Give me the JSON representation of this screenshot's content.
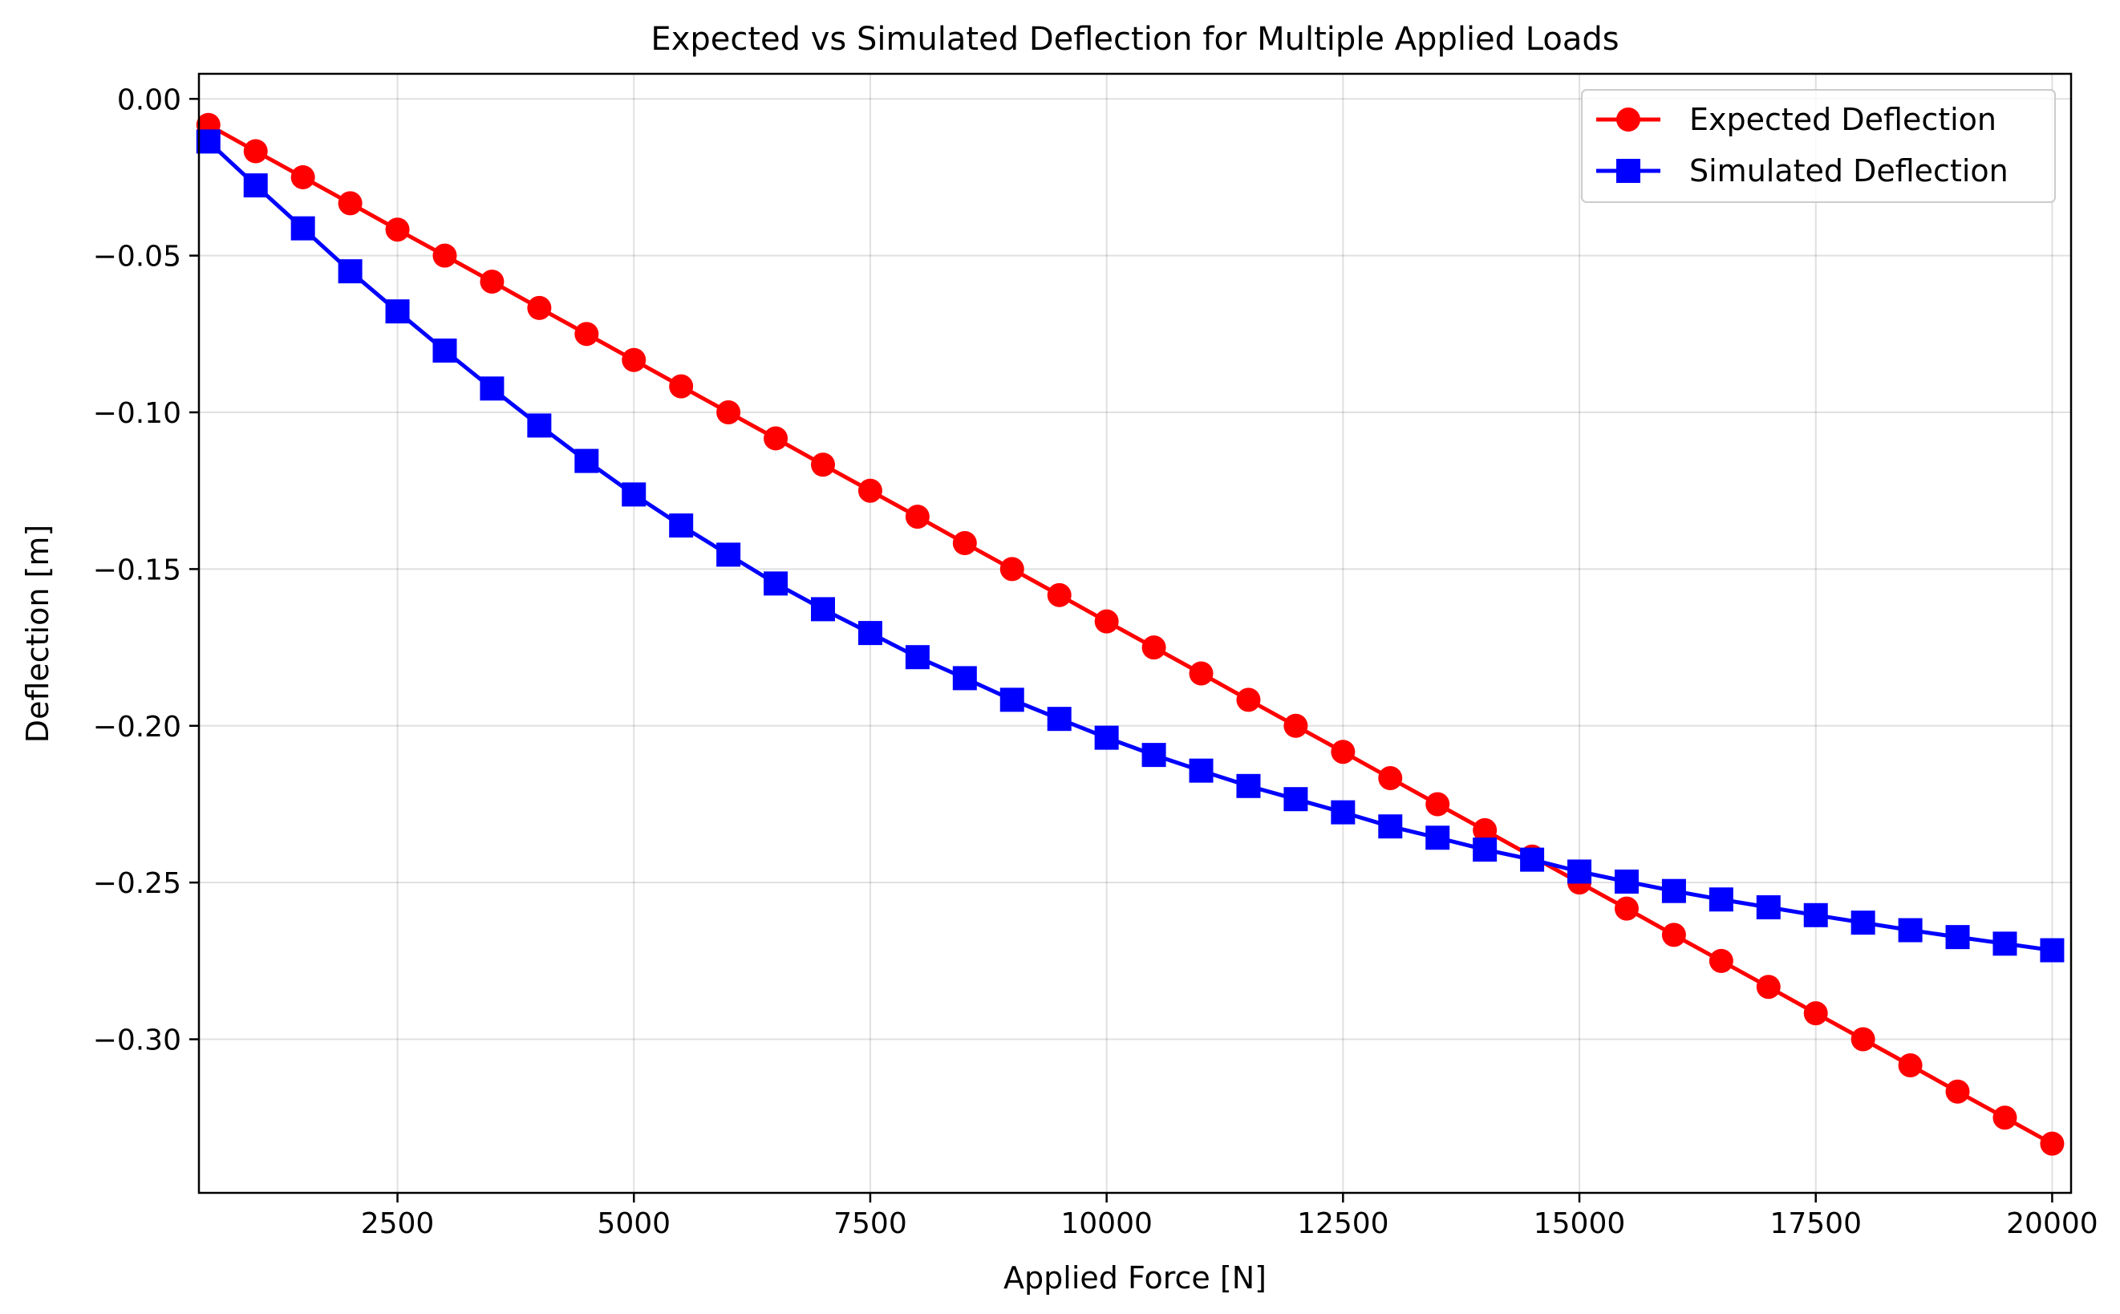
{
  "chart_data": {
    "type": "line",
    "title": "Expected vs Simulated Deflection for Multiple Applied Loads",
    "xlabel": "Applied Force [N]",
    "ylabel": "Deflection [m]",
    "xlim": [
      400,
      20200
    ],
    "ylim": [
      -0.349,
      0.008
    ],
    "x_ticks": [
      2500,
      5000,
      7500,
      10000,
      12500,
      15000,
      17500,
      20000
    ],
    "x_tick_labels": [
      "2500",
      "5000",
      "7500",
      "10000",
      "12500",
      "15000",
      "17500",
      "20000"
    ],
    "y_ticks": [
      0.0,
      -0.05,
      -0.1,
      -0.15,
      -0.2,
      -0.25,
      -0.3
    ],
    "y_tick_labels": [
      "0.00",
      "−0.05",
      "−0.10",
      "−0.15",
      "−0.20",
      "−0.25",
      "−0.30"
    ],
    "grid": true,
    "legend_position": "top-right",
    "x": [
      500,
      1000,
      1500,
      2000,
      2500,
      3000,
      3500,
      4000,
      4500,
      5000,
      5500,
      6000,
      6500,
      7000,
      7500,
      8000,
      8500,
      9000,
      9500,
      10000,
      10500,
      11000,
      11500,
      12000,
      12500,
      13000,
      13500,
      14000,
      14500,
      15000,
      15500,
      16000,
      16500,
      17000,
      17500,
      18000,
      18500,
      19000,
      19500,
      20000
    ],
    "series": [
      {
        "name": "Expected Deflection",
        "color": "#ff0000",
        "marker": "circle",
        "values": [
          -0.0083,
          -0.0167,
          -0.025,
          -0.0333,
          -0.0417,
          -0.05,
          -0.0583,
          -0.0667,
          -0.075,
          -0.0833,
          -0.0917,
          -0.1,
          -0.1083,
          -0.1167,
          -0.125,
          -0.1333,
          -0.1417,
          -0.15,
          -0.1583,
          -0.1667,
          -0.175,
          -0.1833,
          -0.1917,
          -0.2,
          -0.2083,
          -0.2167,
          -0.225,
          -0.2333,
          -0.2417,
          -0.25,
          -0.2583,
          -0.2667,
          -0.275,
          -0.2833,
          -0.2917,
          -0.3,
          -0.3083,
          -0.3167,
          -0.325,
          -0.3333
        ]
      },
      {
        "name": "Simulated Deflection",
        "color": "#0000ff",
        "marker": "square",
        "values": [
          -0.0136,
          -0.0276,
          -0.0413,
          -0.055,
          -0.0678,
          -0.0803,
          -0.0924,
          -0.1042,
          -0.1155,
          -0.1262,
          -0.1361,
          -0.1454,
          -0.1546,
          -0.1628,
          -0.1704,
          -0.1781,
          -0.1848,
          -0.1917,
          -0.1978,
          -0.2038,
          -0.2093,
          -0.2143,
          -0.2192,
          -0.2234,
          -0.2276,
          -0.2321,
          -0.2357,
          -0.2395,
          -0.2427,
          -0.2465,
          -0.2497,
          -0.2527,
          -0.2554,
          -0.2579,
          -0.2604,
          -0.2628,
          -0.2652,
          -0.2674,
          -0.2695,
          -0.2716
        ]
      }
    ]
  }
}
